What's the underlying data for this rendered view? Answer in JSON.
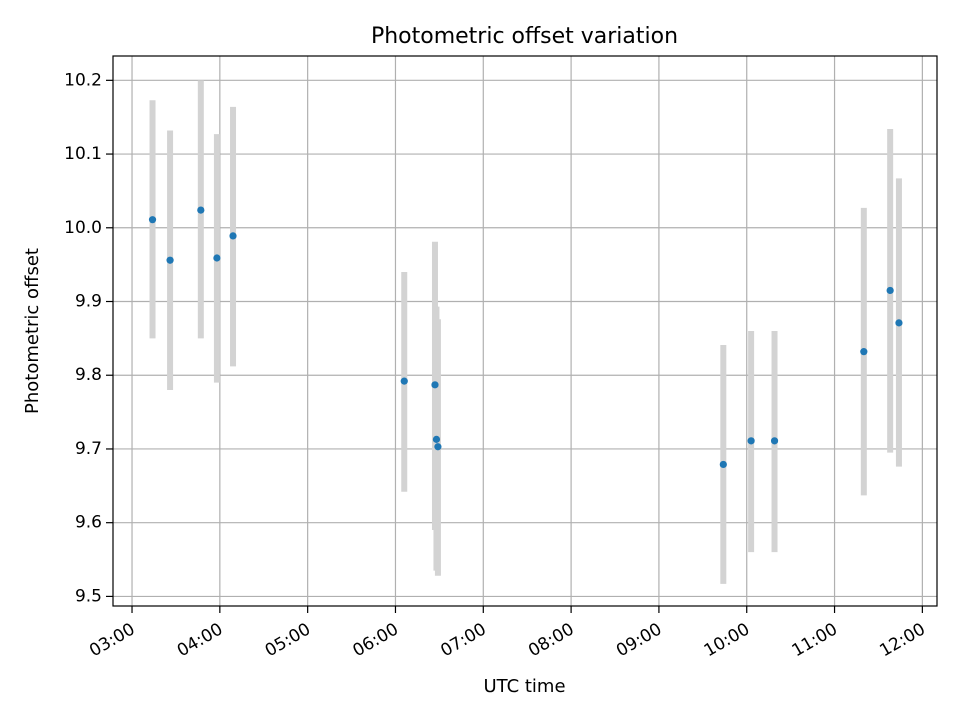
{
  "chart_data": {
    "type": "scatter",
    "title": "Photometric offset variation",
    "xlabel": "UTC time",
    "ylabel": "Photometric offset",
    "x_unit": "UTC hours",
    "xlim": [
      "02:47",
      "12:10"
    ],
    "ylim": [
      9.487,
      10.233
    ],
    "grid": true,
    "x_ticks": [
      "03:00",
      "04:00",
      "05:00",
      "06:00",
      "07:00",
      "08:00",
      "09:00",
      "10:00",
      "11:00",
      "12:00"
    ],
    "y_ticks": [
      "9.5",
      "9.6",
      "9.7",
      "9.8",
      "9.9",
      "10.0",
      "10.1",
      "10.2"
    ],
    "point_color": "#1f77b4",
    "errorbar_color": "#d3d3d3",
    "points": [
      {
        "time": "03:14",
        "y": 10.011,
        "ylow": 9.85,
        "yhigh": 10.173
      },
      {
        "time": "03:26",
        "y": 9.956,
        "ylow": 9.78,
        "yhigh": 10.132
      },
      {
        "time": "03:47",
        "y": 10.024,
        "ylow": 9.85,
        "yhigh": 10.2
      },
      {
        "time": "03:58",
        "y": 9.959,
        "ylow": 9.79,
        "yhigh": 10.127
      },
      {
        "time": "04:09",
        "y": 9.989,
        "ylow": 9.812,
        "yhigh": 10.164
      },
      {
        "time": "06:06",
        "y": 9.792,
        "ylow": 9.642,
        "yhigh": 9.94
      },
      {
        "time": "06:27",
        "y": 9.787,
        "ylow": 9.59,
        "yhigh": 9.981
      },
      {
        "time": "06:28",
        "y": 9.713,
        "ylow": 9.535,
        "yhigh": 9.893
      },
      {
        "time": "06:29",
        "y": 9.703,
        "ylow": 9.528,
        "yhigh": 9.876
      },
      {
        "time": "09:44",
        "y": 9.679,
        "ylow": 9.517,
        "yhigh": 9.841
      },
      {
        "time": "10:03",
        "y": 9.711,
        "ylow": 9.56,
        "yhigh": 9.86
      },
      {
        "time": "10:19",
        "y": 9.711,
        "ylow": 9.56,
        "yhigh": 9.86
      },
      {
        "time": "11:20",
        "y": 9.832,
        "ylow": 9.637,
        "yhigh": 10.027
      },
      {
        "time": "11:38",
        "y": 9.915,
        "ylow": 9.695,
        "yhigh": 10.134
      },
      {
        "time": "11:44",
        "y": 9.871,
        "ylow": 9.676,
        "yhigh": 10.067
      }
    ]
  }
}
